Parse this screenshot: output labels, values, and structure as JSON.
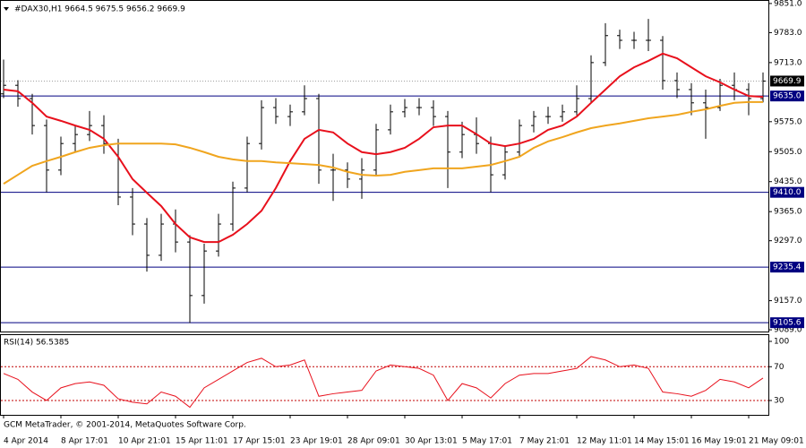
{
  "chart_data": {
    "type": "ohlc",
    "title": "#DAX30,H1  9664.5 9675.5 9656.2 9669.9",
    "footer": "GCM MetaTrader, © 2001-2014, MetaQuotes Software Corp.",
    "categories": [
      "4 Apr 2014",
      null,
      null,
      null,
      "8 Apr 17:01",
      null,
      null,
      null,
      "10 Apr 21:01",
      null,
      null,
      null,
      "15 Apr 11:01",
      null,
      null,
      null,
      "17 Apr 15:01",
      null,
      null,
      null,
      "23 Apr 19:01",
      null,
      null,
      null,
      "28 Apr 09:01",
      null,
      null,
      null,
      "30 Apr 13:01",
      null,
      null,
      null,
      "5 May 17:01",
      null,
      null,
      null,
      "7 May 21:01",
      null,
      null,
      null,
      "12 May 11:01",
      null,
      null,
      null,
      "14 May 15:01",
      null,
      null,
      null,
      "16 May 19:01",
      null,
      null,
      null,
      "21 May 09:01",
      null
    ],
    "open": [
      9640,
      9660,
      9629,
      9566,
      9462,
      9524,
      9545,
      9566,
      9524,
      9399,
      9336,
      9263,
      9336,
      9294,
      9169,
      9273,
      9336,
      9420,
      9524,
      9608,
      9587,
      9598,
      9629,
      9462,
      9462,
      9441,
      9462,
      9556,
      9598,
      9608,
      9608,
      9587,
      9504,
      9545,
      9524,
      9451,
      9504,
      9566,
      9587,
      9587,
      9598,
      9629,
      9713,
      9776,
      9765,
      9765,
      9765,
      9671,
      9650,
      9619,
      9608,
      9660,
      9650,
      9629
    ],
    "high": [
      9720,
      9672,
      9640,
      9580,
      9540,
      9565,
      9600,
      9590,
      9535,
      9420,
      9350,
      9360,
      9370,
      9310,
      9290,
      9360,
      9435,
      9540,
      9625,
      9630,
      9615,
      9660,
      9640,
      9500,
      9480,
      9490,
      9570,
      9615,
      9628,
      9630,
      9625,
      9600,
      9575,
      9585,
      9540,
      9520,
      9580,
      9600,
      9610,
      9615,
      9660,
      9730,
      9805,
      9790,
      9785,
      9815,
      9775,
      9690,
      9665,
      9650,
      9675,
      9690,
      9665,
      9690
    ],
    "low": [
      9630,
      9610,
      9545,
      9410,
      9450,
      9505,
      9530,
      9500,
      9380,
      9310,
      9225,
      9250,
      9270,
      9105,
      9150,
      9260,
      9320,
      9410,
      9510,
      9570,
      9565,
      9590,
      9430,
      9390,
      9420,
      9395,
      9450,
      9545,
      9585,
      9590,
      9565,
      9420,
      9490,
      9500,
      9410,
      9440,
      9495,
      9550,
      9570,
      9575,
      9590,
      9620,
      9705,
      9745,
      9745,
      9740,
      9650,
      9630,
      9590,
      9535,
      9600,
      9625,
      9590,
      9620
    ],
    "close": [
      9660,
      9629,
      9566,
      9462,
      9524,
      9545,
      9566,
      9524,
      9399,
      9336,
      9263,
      9336,
      9294,
      9169,
      9273,
      9336,
      9420,
      9524,
      9608,
      9587,
      9598,
      9629,
      9462,
      9462,
      9441,
      9462,
      9556,
      9598,
      9608,
      9608,
      9587,
      9504,
      9545,
      9524,
      9451,
      9504,
      9566,
      9587,
      9587,
      9598,
      9629,
      9713,
      9776,
      9765,
      9765,
      9765,
      9671,
      9650,
      9619,
      9608,
      9660,
      9650,
      9629,
      9669.9
    ],
    "bar_color": "#000000",
    "series": [
      {
        "color": "#e8101c",
        "values": [
          9650,
          9646,
          9619,
          9587,
          9577,
          9566,
          9556,
          9535,
          9493,
          9441,
          9409,
          9378,
          9336,
          9305,
          9294,
          9294,
          9311,
          9336,
          9367,
          9420,
          9483,
          9535,
          9556,
          9550,
          9524,
          9504,
          9499,
          9504,
          9514,
          9535,
          9562,
          9566,
          9566,
          9546,
          9524,
          9518,
          9524,
          9535,
          9556,
          9566,
          9587,
          9619,
          9650,
          9681,
          9702,
          9717,
          9734,
          9723,
          9702,
          9681,
          9667,
          9650,
          9635,
          9633
        ]
      },
      {
        "color": "#f0a51e",
        "values": [
          9430,
          9451,
          9472,
          9483,
          9493,
          9504,
          9514,
          9520,
          9524,
          9524,
          9524,
          9524,
          9522,
          9514,
          9504,
          9493,
          9487,
          9483,
          9483,
          9480,
          9478,
          9476,
          9474,
          9468,
          9458,
          9451,
          9449,
          9451,
          9458,
          9462,
          9466,
          9466,
          9466,
          9470,
          9474,
          9483,
          9493,
          9514,
          9529,
          9539,
          9550,
          9560,
          9566,
          9571,
          9577,
          9583,
          9587,
          9591,
          9598,
          9604,
          9612,
          9619,
          9621,
          9621
        ]
      }
    ],
    "ylim": [
      9085,
      9855
    ],
    "yticks": [
      {
        "value": 9089,
        "label": "9089.0"
      },
      {
        "value": 9157,
        "label": "9157.0"
      },
      {
        "value": 9297,
        "label": "9297.0"
      },
      {
        "value": 9365,
        "label": "9365.0"
      },
      {
        "value": 9435,
        "label": "9435.0"
      },
      {
        "value": 9505,
        "label": "9505.0"
      },
      {
        "value": 9575,
        "label": "9575.0"
      },
      {
        "value": 9713,
        "label": "9713.0"
      },
      {
        "value": 9783,
        "label": "9783.0"
      },
      {
        "value": 9851,
        "label": "9851.0"
      }
    ],
    "levels": [
      {
        "value": 9635,
        "label": "9635.0"
      },
      {
        "value": 9410,
        "label": "9410.0"
      },
      {
        "value": 9235.4,
        "label": "9235.4"
      },
      {
        "value": 9105.6,
        "label": "9105.6"
      }
    ],
    "level_color": "#000080",
    "last_price": 9669.9,
    "rsi": {
      "title": "RSI(14) 56.5385",
      "color": "#e8101c",
      "values": [
        62,
        55,
        40,
        30,
        45,
        50,
        52,
        48,
        32,
        28,
        26,
        40,
        35,
        22,
        45,
        55,
        65,
        75,
        80,
        70,
        72,
        78,
        35,
        38,
        40,
        42,
        65,
        72,
        70,
        68,
        60,
        30,
        50,
        45,
        33,
        50,
        60,
        62,
        62,
        65,
        68,
        82,
        78,
        70,
        72,
        68,
        40,
        38,
        35,
        42,
        55,
        52,
        45,
        56.5385
      ],
      "ylim": [
        13,
        100
      ],
      "yticks": [
        30,
        70,
        100
      ],
      "levels": [
        30,
        70
      ]
    }
  }
}
